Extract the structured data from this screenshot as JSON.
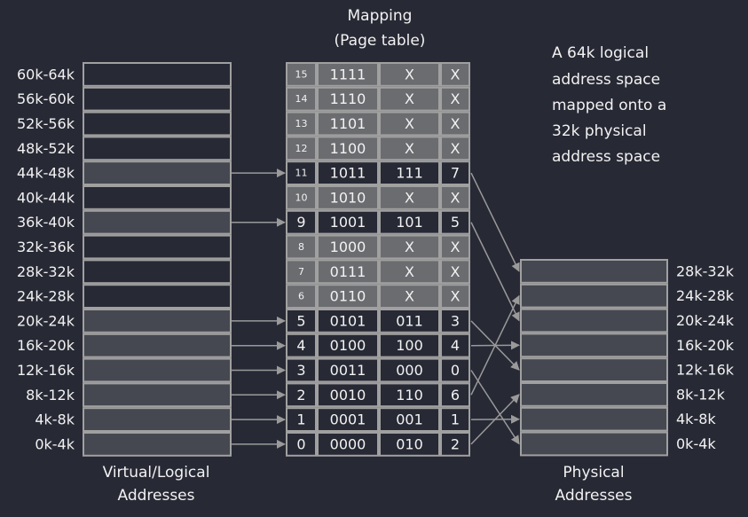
{
  "title": [
    "Mapping",
    "(Page table)"
  ],
  "description": [
    "A 64k logical",
    "address space",
    "mapped onto a",
    "32k physical",
    "address space"
  ],
  "virtual_label": [
    "Virtual/Logical",
    "Addresses"
  ],
  "physical_label": [
    "Physical",
    "Addresses"
  ],
  "virtual_ranges": [
    "0k-4k",
    "4k-8k",
    "8k-12k",
    "12k-16k",
    "16k-20k",
    "20k-24k",
    "24k-28k",
    "28k-32k",
    "32k-36k",
    "36k-40k",
    "40k-44k",
    "44k-48k",
    "48k-52k",
    "52k-56k",
    "56k-60k",
    "60k-64k"
  ],
  "physical_ranges": [
    "0k-4k",
    "4k-8k",
    "8k-12k",
    "12k-16k",
    "16k-20k",
    "20k-24k",
    "24k-28k",
    "28k-32k"
  ],
  "page_table": [
    {
      "page": "0",
      "bits": "0000",
      "frame_bits": "010",
      "frame": "2"
    },
    {
      "page": "1",
      "bits": "0001",
      "frame_bits": "001",
      "frame": "1"
    },
    {
      "page": "2",
      "bits": "0010",
      "frame_bits": "110",
      "frame": "6"
    },
    {
      "page": "3",
      "bits": "0011",
      "frame_bits": "000",
      "frame": "0"
    },
    {
      "page": "4",
      "bits": "0100",
      "frame_bits": "100",
      "frame": "4"
    },
    {
      "page": "5",
      "bits": "0101",
      "frame_bits": "011",
      "frame": "3"
    },
    {
      "page": "6",
      "bits": "0110",
      "frame_bits": "X",
      "frame": "X"
    },
    {
      "page": "7",
      "bits": "0111",
      "frame_bits": "X",
      "frame": "X"
    },
    {
      "page": "8",
      "bits": "1000",
      "frame_bits": "X",
      "frame": "X"
    },
    {
      "page": "9",
      "bits": "1001",
      "frame_bits": "101",
      "frame": "5"
    },
    {
      "page": "10",
      "bits": "1010",
      "frame_bits": "X",
      "frame": "X"
    },
    {
      "page": "11",
      "bits": "1011",
      "frame_bits": "111",
      "frame": "7"
    },
    {
      "page": "12",
      "bits": "1100",
      "frame_bits": "X",
      "frame": "X"
    },
    {
      "page": "13",
      "bits": "1101",
      "frame_bits": "X",
      "frame": "X"
    },
    {
      "page": "14",
      "bits": "1110",
      "frame_bits": "X",
      "frame": "X"
    },
    {
      "page": "15",
      "bits": "1111",
      "frame_bits": "X",
      "frame": "X"
    }
  ],
  "colors": {
    "background": "#272935",
    "mapped_fill": "#464851",
    "unmapped_x_fill": "#6b6c70",
    "border": "#a0a0a0",
    "arrow": "#9a9a9a",
    "text": "#f2f2f2"
  }
}
